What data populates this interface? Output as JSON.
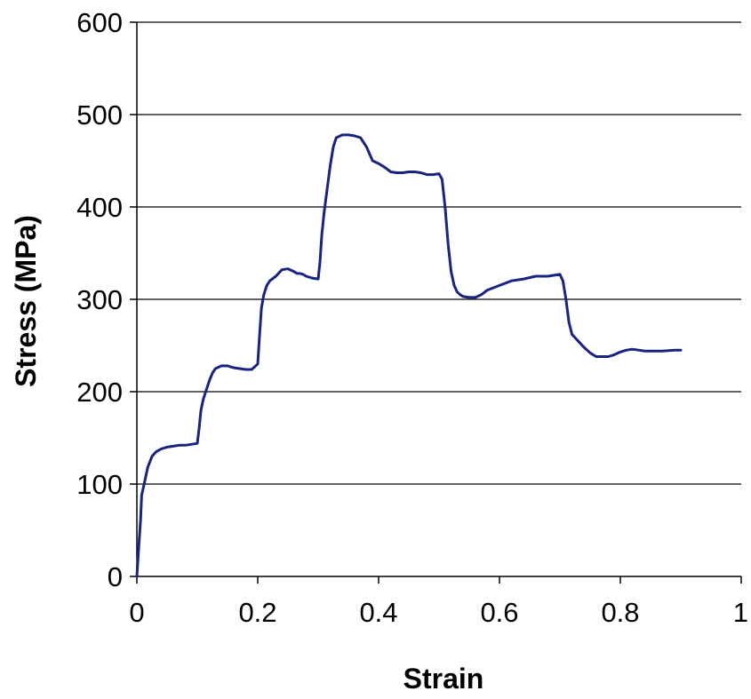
{
  "chart_data": {
    "type": "line",
    "title": "",
    "xlabel": "Strain",
    "ylabel": "Stress (MPa)",
    "xlim": [
      0,
      1
    ],
    "ylim": [
      0,
      600
    ],
    "x_ticks": [
      0,
      0.2,
      0.4,
      0.6,
      0.8,
      1
    ],
    "x_tick_labels": [
      "0",
      "0.2",
      "0.4",
      "0.6",
      "0.8",
      "1"
    ],
    "y_ticks": [
      0,
      100,
      200,
      300,
      400,
      500,
      600
    ],
    "y_tick_labels": [
      "0",
      "100",
      "200",
      "300",
      "400",
      "500",
      "600"
    ],
    "grid": "horizontal",
    "legend": "none",
    "series_color": "#1a237e",
    "series": [
      {
        "x": [
          0.0,
          0.003,
          0.006,
          0.008,
          0.012,
          0.018,
          0.025,
          0.032,
          0.04,
          0.05,
          0.06,
          0.07,
          0.08,
          0.09,
          0.1,
          0.103,
          0.106,
          0.11,
          0.115,
          0.12,
          0.125,
          0.13,
          0.14,
          0.15,
          0.16,
          0.17,
          0.18,
          0.19,
          0.2,
          0.203,
          0.206,
          0.21,
          0.215,
          0.22,
          0.23,
          0.24,
          0.25,
          0.26,
          0.265,
          0.27,
          0.275,
          0.28,
          0.29,
          0.3,
          0.303,
          0.306,
          0.31,
          0.315,
          0.32,
          0.325,
          0.33,
          0.34,
          0.35,
          0.36,
          0.37,
          0.38,
          0.39,
          0.4,
          0.41,
          0.42,
          0.43,
          0.44,
          0.45,
          0.46,
          0.47,
          0.48,
          0.49,
          0.5,
          0.505,
          0.51,
          0.515,
          0.52,
          0.525,
          0.53,
          0.535,
          0.54,
          0.55,
          0.56,
          0.57,
          0.58,
          0.6,
          0.62,
          0.64,
          0.66,
          0.68,
          0.7,
          0.705,
          0.71,
          0.715,
          0.72,
          0.73,
          0.74,
          0.75,
          0.76,
          0.77,
          0.78,
          0.79,
          0.8,
          0.81,
          0.82,
          0.83,
          0.84,
          0.85,
          0.87,
          0.89,
          0.9
        ],
        "y": [
          0,
          30,
          60,
          88,
          100,
          118,
          130,
          135,
          138,
          140,
          141,
          142,
          142,
          143,
          144,
          160,
          180,
          192,
          202,
          212,
          220,
          225,
          228,
          228,
          226,
          225,
          224,
          224,
          230,
          260,
          290,
          305,
          315,
          320,
          325,
          332,
          333,
          330,
          328,
          328,
          327,
          325,
          323,
          322,
          340,
          370,
          395,
          420,
          445,
          465,
          475,
          478,
          478,
          477,
          475,
          465,
          450,
          447,
          443,
          438,
          437,
          437,
          438,
          438,
          437,
          435,
          435,
          436,
          430,
          400,
          360,
          330,
          315,
          308,
          305,
          303,
          302,
          302,
          305,
          310,
          315,
          320,
          322,
          325,
          325,
          327,
          320,
          300,
          275,
          262,
          255,
          248,
          242,
          238,
          238,
          238,
          240,
          243,
          245,
          246,
          245,
          244,
          244,
          244,
          245,
          245
        ]
      }
    ]
  }
}
